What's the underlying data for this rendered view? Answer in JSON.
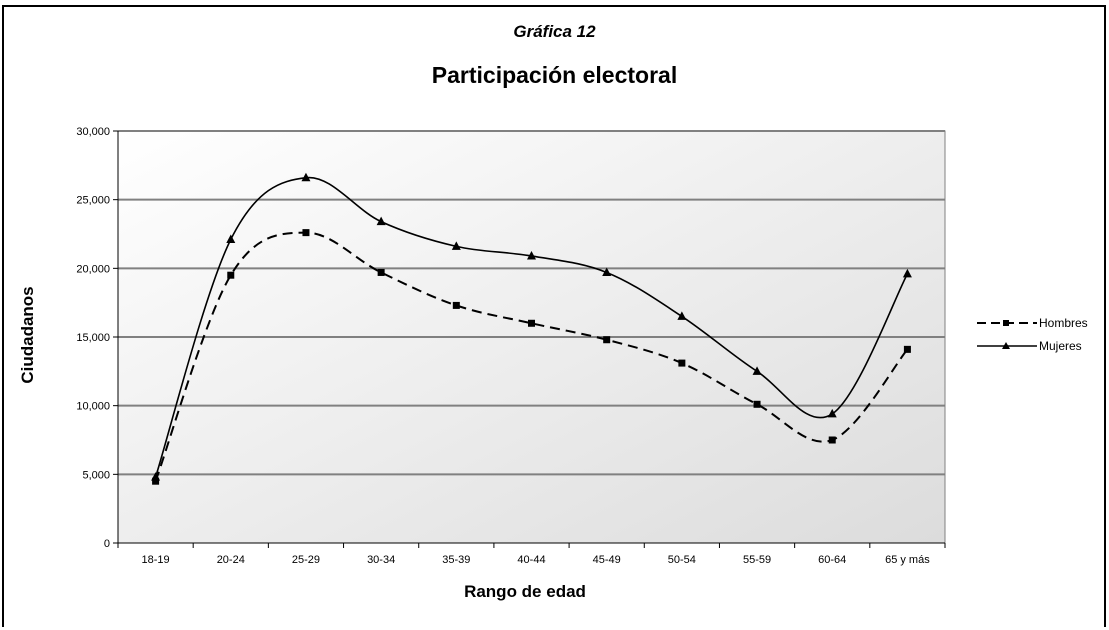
{
  "chart_data": {
    "type": "line",
    "subtitle": "Gráfica 12",
    "title": "Participación electoral",
    "xlabel": "Rango de edad",
    "ylabel": "Ciudadanos",
    "categories": [
      "18-19",
      "20-24",
      "25-29",
      "30-34",
      "35-39",
      "40-44",
      "45-49",
      "50-54",
      "55-59",
      "60-64",
      "65 y más"
    ],
    "y_ticks": [
      "0",
      "5,000",
      "10,000",
      "15,000",
      "20,000",
      "25,000",
      "30,000"
    ],
    "ylim": [
      0,
      30000
    ],
    "grid": "horizontal",
    "legend_position": "right",
    "series": [
      {
        "name": "Hombres",
        "marker": "square",
        "line": "dashed",
        "values": [
          4500,
          19500,
          22600,
          19700,
          17300,
          16000,
          14800,
          13100,
          10100,
          7500,
          14100
        ]
      },
      {
        "name": "Mujeres",
        "marker": "triangle",
        "line": "solid",
        "values": [
          4800,
          22100,
          26600,
          23400,
          21600,
          20900,
          19700,
          16500,
          12500,
          9400,
          19600
        ]
      }
    ],
    "colors": {
      "plot_bg_light": "#ffffff",
      "plot_bg_dark": "#dcdcdc",
      "grid": "#808080",
      "line": "#000000"
    }
  }
}
